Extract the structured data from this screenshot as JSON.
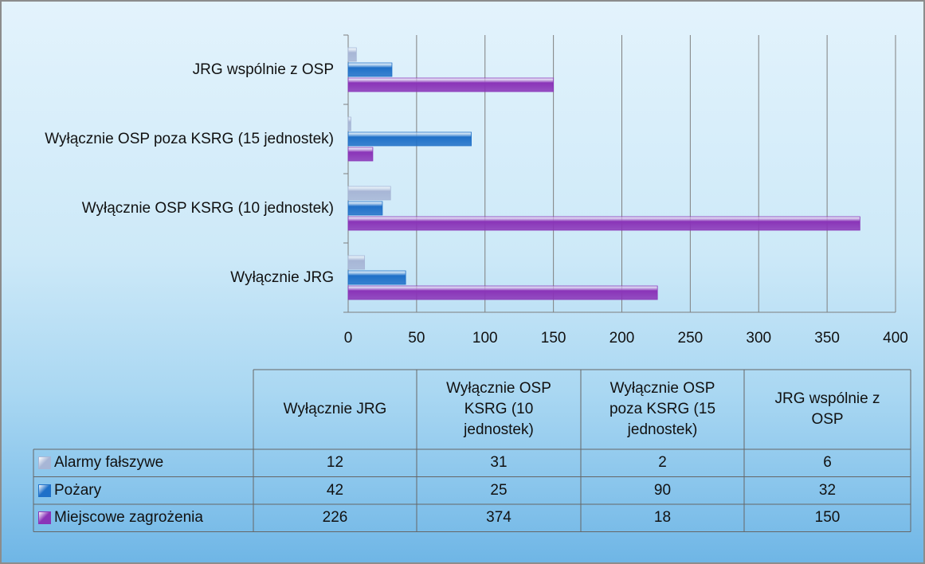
{
  "chart_data": {
    "type": "bar",
    "orientation": "horizontal",
    "categories": [
      "Wyłącznie JRG",
      "Wyłącznie OSP KSRG (10 jednostek)",
      "Wyłącznie OSP poza KSRG (15 jednostek)",
      "JRG wspólnie z OSP"
    ],
    "series": [
      {
        "name": "Alarmy fałszywe",
        "color": "#a7b6d6",
        "values": [
          12,
          31,
          2,
          6
        ]
      },
      {
        "name": "Pożary",
        "color": "#1f70c8",
        "values": [
          42,
          25,
          90,
          32
        ]
      },
      {
        "name": "Miejscowe zagrożenia",
        "color": "#8a34b8",
        "values": [
          226,
          374,
          18,
          150
        ]
      }
    ],
    "xlim": [
      0,
      400
    ],
    "xticks": [
      0,
      50,
      100,
      150,
      200,
      250,
      300,
      350,
      400
    ],
    "grid": true,
    "data_table": true
  }
}
